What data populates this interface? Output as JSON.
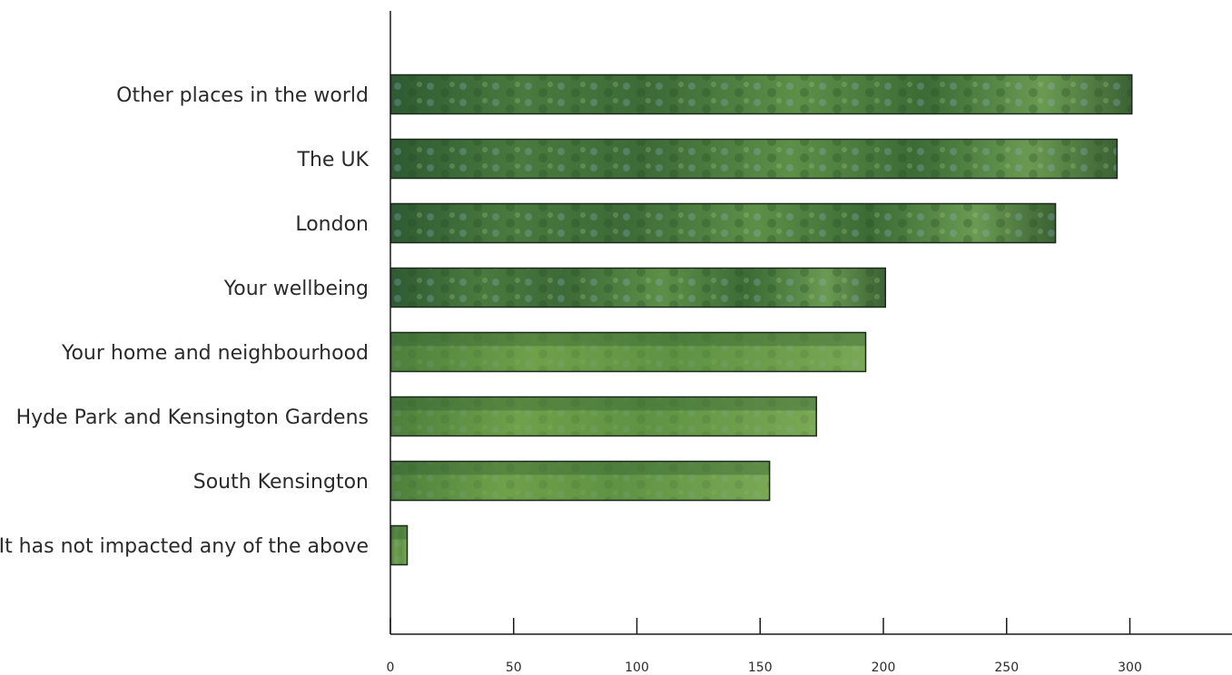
{
  "chart_data": {
    "type": "bar",
    "orientation": "horizontal",
    "title": "",
    "xlabel": "",
    "ylabel": "",
    "categories": [
      "Other places in the world",
      "The UK",
      "London",
      "Your wellbeing",
      "Your home and neighbourhood",
      "Hyde Park and Kensington Gardens",
      "South Kensington",
      "It has not impacted any of the above"
    ],
    "values": [
      301,
      295,
      270,
      201,
      193,
      173,
      154,
      7
    ],
    "xlim": [
      0,
      340
    ],
    "xticks": [
      0,
      50,
      100,
      150,
      200,
      250,
      300
    ],
    "xtick_labels": [
      "0",
      "50",
      "100",
      "150",
      "200",
      "250",
      "300"
    ],
    "grid": false,
    "legend": "none",
    "bar_fill": "photo of green park trees and grass",
    "colors": {
      "bar_dark": "#2f5a32",
      "bar_mid": "#4f7e40",
      "bar_light": "#7fa85a",
      "grass": "#6fa04a",
      "sky": "#c9d9e8",
      "bar_outline": "#1b2a1b",
      "axis": "#1a1a1a",
      "text": "#2b2b2b"
    }
  }
}
